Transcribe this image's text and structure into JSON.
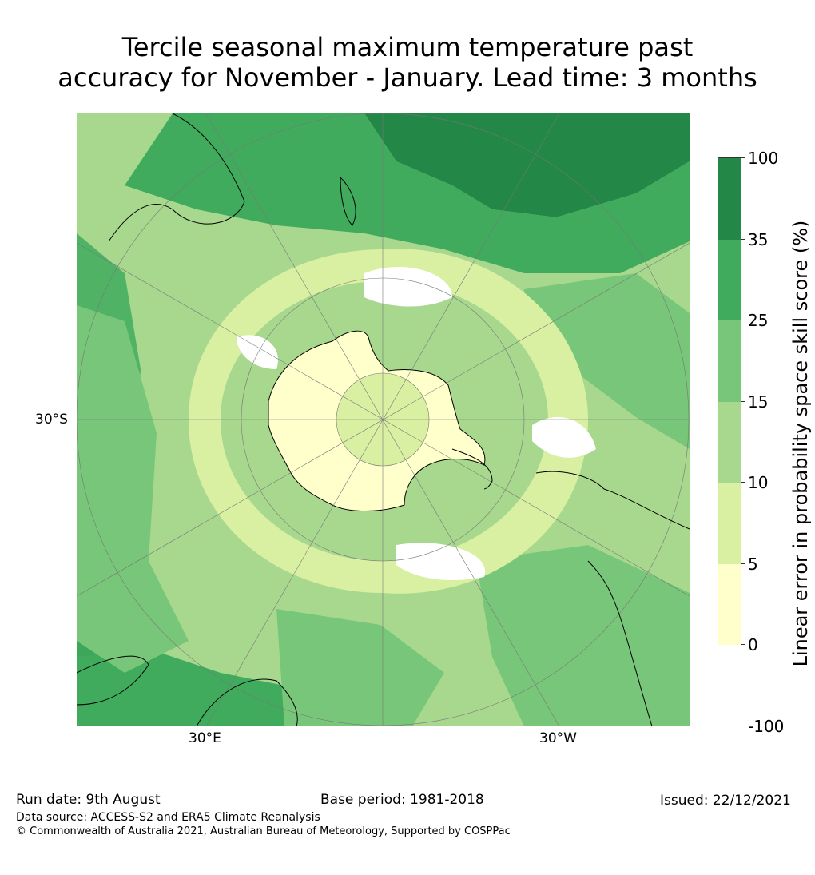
{
  "title_line1": "Tercile seasonal maximum temperature past",
  "title_line2": "accuracy for November - January. Lead time: 3 months",
  "map": {
    "lat_label": "30°S",
    "lon_labels": [
      "30°E",
      "30°W"
    ]
  },
  "colorbar": {
    "title": "Linear error in probability space skill score (%)",
    "tick_labels": [
      "100",
      "35",
      "25",
      "15",
      "10",
      "5",
      "0",
      "-100"
    ],
    "bins": [
      {
        "from": 35,
        "to": 100,
        "color": "#238847"
      },
      {
        "from": 25,
        "to": 35,
        "color": "#41ab5d"
      },
      {
        "from": 15,
        "to": 25,
        "color": "#78c679"
      },
      {
        "from": 10,
        "to": 15,
        "color": "#a7d88e"
      },
      {
        "from": 5,
        "to": 10,
        "color": "#d9f0a3"
      },
      {
        "from": 0,
        "to": 5,
        "color": "#ffffcc"
      },
      {
        "from": -100,
        "to": 0,
        "color": "#ffffff"
      }
    ]
  },
  "footer": {
    "run_date": "Run date: 9th August",
    "base_period": "Base period: 1981-2018",
    "issued": "Issued: 22/12/2021",
    "data_source": "Data source: ACCESS-S2 and ERA5 Climate Reanalysis",
    "copyright": "© Commonwealth of Australia 2021, Australian Bureau of Meteorology, Supported by COSPPac"
  }
}
